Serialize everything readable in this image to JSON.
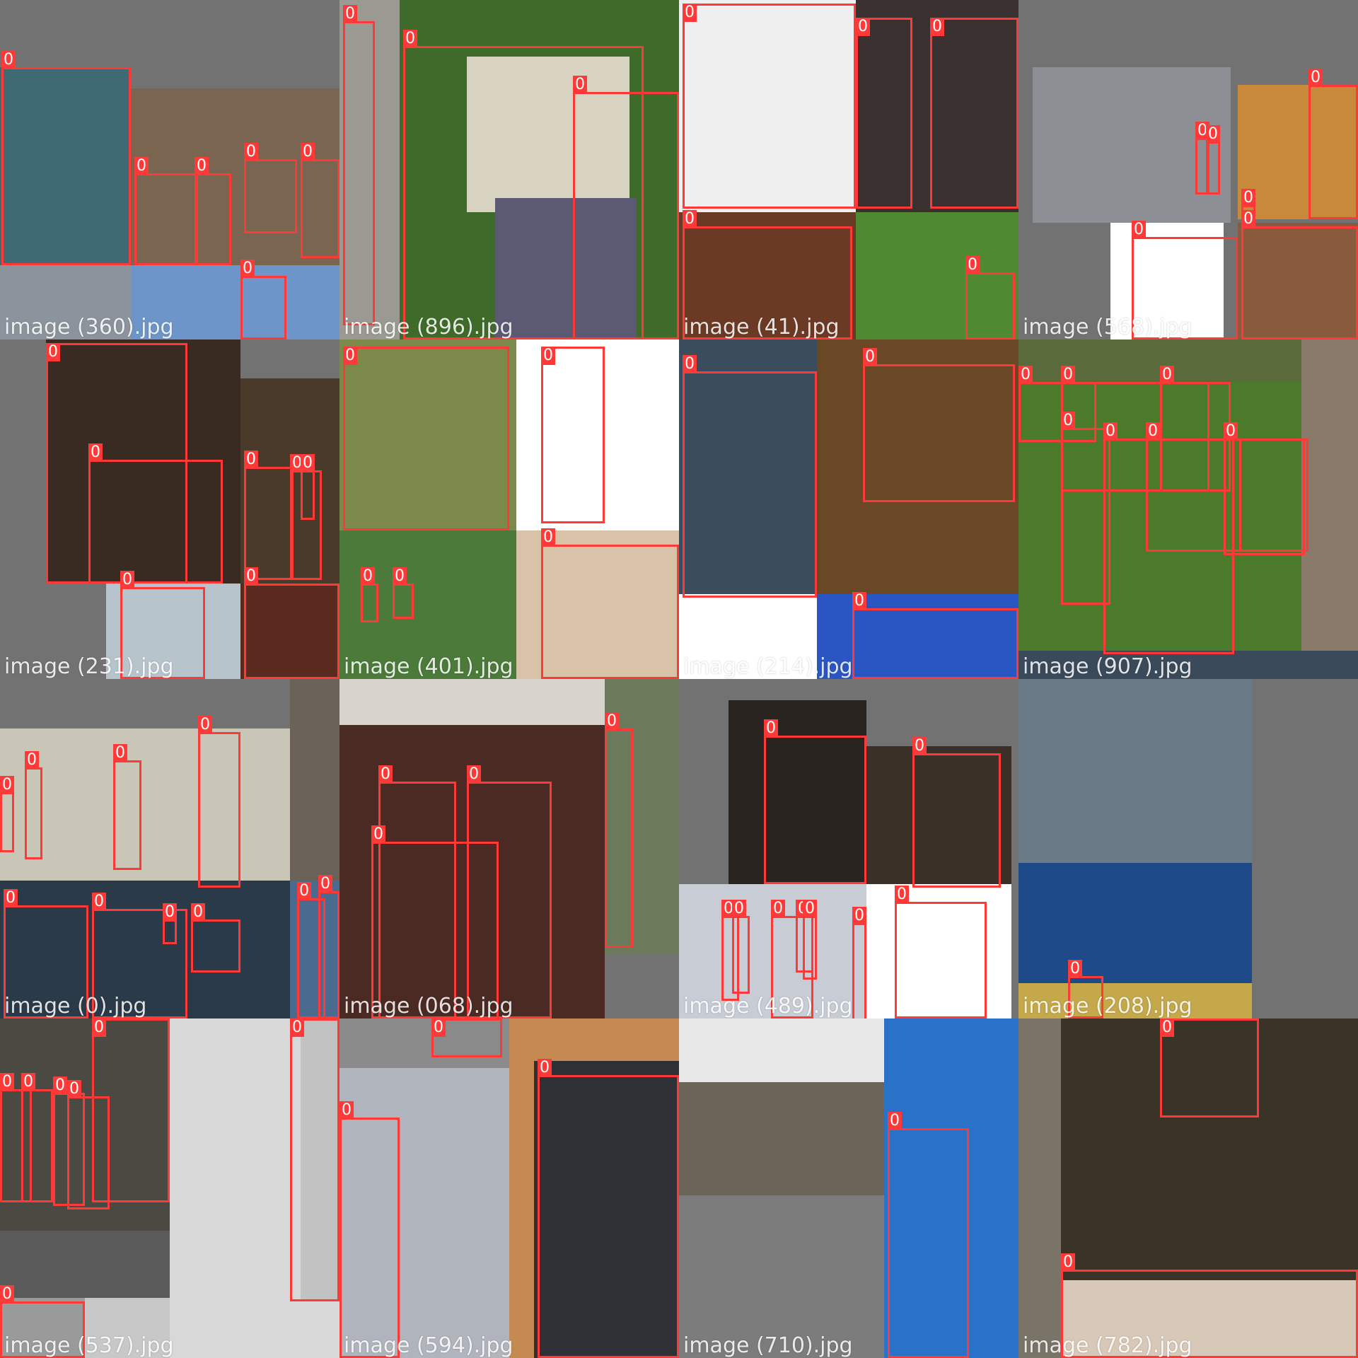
{
  "box_label": "0",
  "colors": {
    "box": "#ff3838",
    "padding": "#727272"
  },
  "tiles": [
    {
      "caption": "image (360).jpg"
    },
    {
      "caption": "image (896).jpg"
    },
    {
      "caption": "image (41).jpg"
    },
    {
      "caption": "image (568).jpg"
    },
    {
      "caption": "image (231).jpg"
    },
    {
      "caption": "image (401).jpg"
    },
    {
      "caption": "image (214).jpg"
    },
    {
      "caption": "image (907).jpg"
    },
    {
      "caption": "image (0).jpg"
    },
    {
      "caption": "image (068).jpg"
    },
    {
      "caption": "image (489).jpg"
    },
    {
      "caption": "image (208).jpg"
    },
    {
      "caption": "image (537).jpg"
    },
    {
      "caption": "image (594).jpg"
    },
    {
      "caption": "image (710).jpg"
    },
    {
      "caption": "image (782).jpg"
    }
  ]
}
